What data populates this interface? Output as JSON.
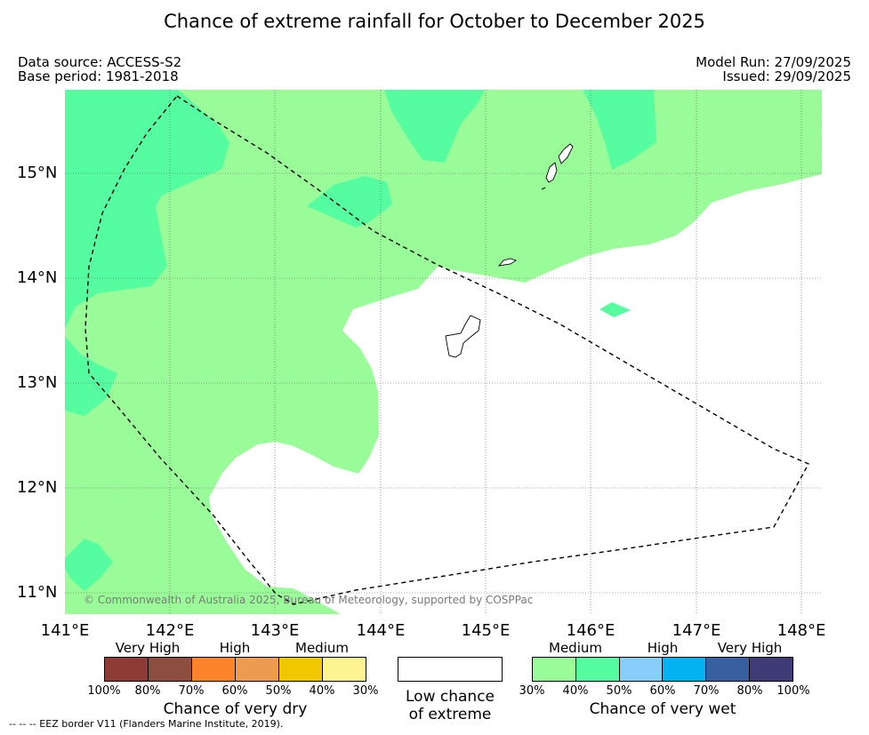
{
  "title": "Chance of extreme rainfall for October to December 2025",
  "meta": {
    "data_source": "Data source: ACCESS-S2",
    "base_period": "Base period: 1981-2018",
    "model_run": "Model Run: 27/09/2025",
    "issued": "Issued: 29/09/2025"
  },
  "map": {
    "y_ticks": [
      "15°N",
      "14°N",
      "13°N",
      "12°N",
      "11°N"
    ],
    "x_ticks": [
      "141°E",
      "142°E",
      "143°E",
      "144°E",
      "145°E",
      "146°E",
      "147°E",
      "148°E"
    ],
    "copyright": "© Commonwealth of Australia 2025, Bureau of Meteorology, supported by COSPPac",
    "colors": {
      "medium_wet": "#9afc98",
      "high_wet": "#55fca0",
      "coast": "#000000",
      "eez": "#000000"
    }
  },
  "legend": {
    "dry": {
      "labels": [
        "Very High",
        "High",
        "Medium"
      ],
      "ticks": [
        "100%",
        "80%",
        "70%",
        "60%",
        "50%",
        "40%",
        "30%"
      ],
      "colors": [
        "#8e3b36",
        "#8d4e3f",
        "#fe842b",
        "#ec9b50",
        "#f0c802",
        "#fef592"
      ],
      "title": "Chance of very dry"
    },
    "low": {
      "line1": "Low chance",
      "line2": "of extreme"
    },
    "wet": {
      "labels": [
        "Medium",
        "High",
        "Very High"
      ],
      "ticks": [
        "30%",
        "40%",
        "50%",
        "60%",
        "70%",
        "80%",
        "100%"
      ],
      "colors": [
        "#9afc98",
        "#55fca0",
        "#88cefd",
        "#02b2f1",
        "#385fa0",
        "#3f3b77"
      ],
      "title": "Chance of very wet"
    }
  },
  "eez_note": "--  --  -- EEZ border V11 (Flanders Marine Institute, 2019)."
}
